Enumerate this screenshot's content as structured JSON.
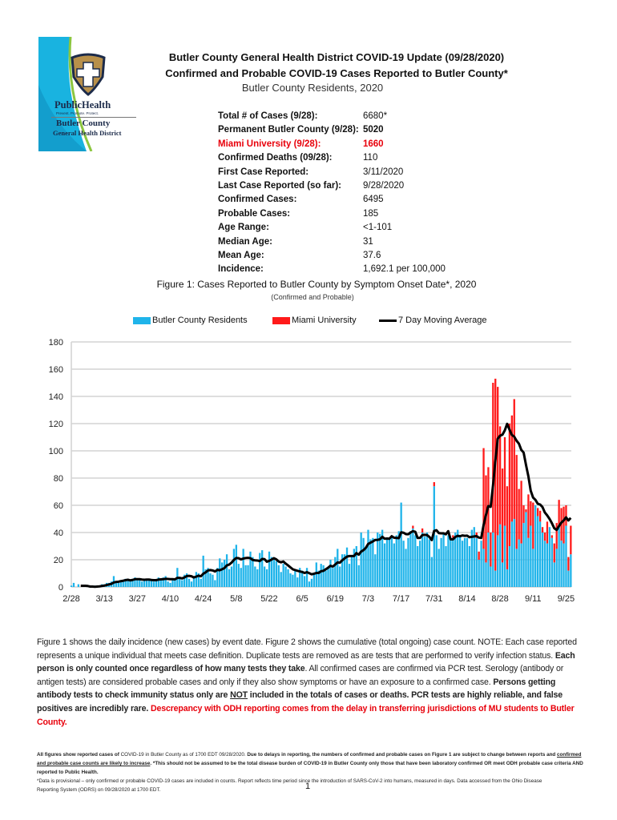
{
  "logo": {
    "text_main": "PublicHealth",
    "text_tag": "Prevent. Promote. Protect.",
    "text_county": "Butler County",
    "text_district": "General Health District"
  },
  "header": {
    "title1": "Butler County General Health District COVID-19 Update (09/28/2020)",
    "title2": "Confirmed and Probable COVID-19 Cases Reported to Butler County*",
    "title3": "Butler County Residents, 2020"
  },
  "stats": [
    {
      "label": "Total # of Cases (9/28):",
      "value": "6680*"
    },
    {
      "label": "Permanent Butler County (9/28):",
      "value": "5020"
    },
    {
      "label": "Miami University (9/28):",
      "value": "1660"
    },
    {
      "label": "Confirmed Deaths (09/28):",
      "value": "110"
    },
    {
      "label": "First Case Reported:",
      "value": "3/11/2020"
    },
    {
      "label": "Last Case Reported (so far):",
      "value": "9/28/2020"
    },
    {
      "label": "Confirmed Cases:",
      "value": "6495"
    },
    {
      "label": "Probable Cases:",
      "value": "185"
    },
    {
      "label": "Age Range:",
      "value": "<1-101"
    },
    {
      "label": "Median Age:",
      "value": "31"
    },
    {
      "label": "Mean Age:",
      "value": "37.6"
    },
    {
      "label": "Incidence:",
      "value": "1,692.1 per 100,000"
    }
  ],
  "colors": {
    "residents": "#1fb4ea",
    "miami": "#ff1a1a",
    "average": "#000000",
    "highlight_text": "#e8000b"
  },
  "chart_data": {
    "type": "bar",
    "stacked": true,
    "title": "Figure 1: Cases Reported to Butler County by Symptom Onset Date*, 2020",
    "subtitle": "(Confirmed and Probable)",
    "legend_position": "top",
    "grid": true,
    "ylim": [
      0,
      180
    ],
    "yticks": [
      0,
      20,
      40,
      60,
      80,
      100,
      120,
      140,
      160,
      180
    ],
    "x_start": "2/28",
    "xticks": [
      "2/28",
      "3/13",
      "3/27",
      "4/10",
      "4/24",
      "5/8",
      "5/22",
      "6/5",
      "6/19",
      "7/3",
      "7/17",
      "7/31",
      "8/14",
      "8/28",
      "9/11",
      "9/25"
    ],
    "series": [
      {
        "name": "Butler County Residents",
        "type": "bar",
        "values": [
          1,
          3,
          0,
          2,
          0,
          0,
          0,
          0,
          0,
          0,
          1,
          1,
          1,
          2,
          2,
          3,
          3,
          4,
          8,
          4,
          3,
          5,
          5,
          6,
          6,
          5,
          6,
          7,
          5,
          5,
          4,
          5,
          6,
          6,
          5,
          4,
          5,
          7,
          6,
          7,
          8,
          4,
          3,
          5,
          6,
          14,
          7,
          5,
          9,
          10,
          6,
          4,
          8,
          11,
          10,
          6,
          23,
          13,
          14,
          10,
          9,
          5,
          14,
          21,
          18,
          20,
          24,
          13,
          15,
          28,
          31,
          17,
          14,
          28,
          16,
          16,
          26,
          22,
          15,
          13,
          25,
          27,
          15,
          13,
          26,
          22,
          20,
          19,
          16,
          11,
          17,
          15,
          13,
          10,
          9,
          12,
          7,
          14,
          12,
          8,
          14,
          4,
          6,
          10,
          18,
          12,
          17,
          16,
          12,
          14,
          20,
          14,
          22,
          28,
          15,
          24,
          24,
          29,
          17,
          22,
          28,
          30,
          16,
          40,
          36,
          29,
          42,
          35,
          36,
          24,
          40,
          39,
          42,
          32,
          36,
          35,
          37,
          32,
          38,
          41,
          62,
          34,
          28,
          36,
          41,
          43,
          38,
          30,
          34,
          40,
          37,
          40,
          35,
          22,
          74,
          38,
          28,
          36,
          40,
          30,
          38,
          35,
          36,
          40,
          42,
          38,
          34,
          36,
          36,
          30,
          42,
          44,
          36,
          20,
          34,
          28,
          18,
          40,
          15,
          40,
          12,
          38,
          46,
          18,
          45,
          13,
          30,
          48,
          50,
          28,
          35,
          32,
          47,
          55,
          36,
          45,
          28,
          60,
          52,
          48,
          40,
          34,
          32,
          44,
          36,
          18,
          28,
          44,
          34,
          32,
          45,
          12,
          24
        ]
      },
      {
        "name": "Miami University",
        "type": "bar",
        "values": [
          0,
          0,
          0,
          0,
          0,
          0,
          0,
          0,
          0,
          0,
          0,
          0,
          0,
          0,
          0,
          0,
          0,
          0,
          0,
          0,
          0,
          0,
          0,
          0,
          0,
          0,
          0,
          0,
          0,
          0,
          0,
          0,
          0,
          0,
          0,
          0,
          0,
          0,
          0,
          0,
          0,
          0,
          0,
          0,
          0,
          0,
          0,
          0,
          0,
          0,
          0,
          0,
          0,
          0,
          0,
          0,
          0,
          0,
          0,
          0,
          0,
          0,
          0,
          0,
          0,
          0,
          0,
          0,
          0,
          0,
          0,
          0,
          0,
          0,
          0,
          0,
          0,
          0,
          0,
          0,
          0,
          0,
          0,
          0,
          0,
          0,
          0,
          0,
          0,
          0,
          0,
          0,
          0,
          0,
          0,
          0,
          0,
          0,
          0,
          0,
          0,
          0,
          0,
          0,
          0,
          0,
          0,
          0,
          0,
          0,
          0,
          0,
          0,
          0,
          0,
          0,
          0,
          0,
          0,
          0,
          0,
          0,
          0,
          0,
          0,
          0,
          0,
          0,
          0,
          0,
          0,
          0,
          0,
          0,
          0,
          0,
          0,
          0,
          0,
          0,
          0,
          0,
          0,
          0,
          0,
          2,
          0,
          0,
          0,
          3,
          0,
          0,
          0,
          0,
          3,
          0,
          0,
          0,
          0,
          0,
          0,
          0,
          2,
          0,
          0,
          0,
          0,
          0,
          0,
          0,
          0,
          0,
          4,
          6,
          0,
          74,
          64,
          48,
          25,
          110,
          141,
          109,
          72,
          69,
          65,
          61,
          90,
          78,
          88,
          69,
          37,
          46,
          13,
          2,
          32,
          18,
          34,
          0,
          6,
          8,
          4,
          6,
          16,
          0,
          2,
          14,
          19,
          20,
          24,
          27,
          15,
          10,
          21
        ]
      },
      {
        "name": "7 Day Moving Average",
        "type": "line"
      }
    ]
  },
  "body": {
    "p1": "Figure 1 shows the daily incidence (new cases) by event date. Figure 2 shows the cumulative (total ongoing) case count. NOTE: Each case reported represents a unique individual that meets case definition. Duplicate tests are removed as are tests that are performed to verify infection status. ",
    "p2_bold": "Each person is only counted once regardless of how many tests they take",
    "p3": ". All confirmed cases are confirmed via PCR test. Serology (antibody or antigen tests) are considered probable cases and only if they also show symptoms or have an exposure to a confirmed case. ",
    "p4_bold": "Persons getting antibody tests to check immunity status only are ",
    "p4_not": "NOT",
    "p4_bold2": " included in the totals of cases or deaths. PCR tests are highly reliable, and false positives are incredibly rare. ",
    "p5_red": "Descrepancy with ODH reporting comes from the delay in transferring jurisdictions of MU students to  Butler County."
  },
  "footnotes": {
    "f1": "All figures show reported cases of ",
    "f1b": "COVID-19 in Butler County as of 1700 EDT 09/28/2020. ",
    "f1c": "Due to delays in reporting, the numbers of confirmed and probable cases on Figure 1 are subject to change between reports and ",
    "f1u": "confirmed and probable case counts are likely to increase",
    "f1d": ". *This should not be assumed to be the total disease burden of COVID-19 in Butler County only those that have been laboratory confirmed OR meet ODH probable case criteria AND reported to Public Health.",
    "f2": "*Data is provisional – only confirmed or probable COVID-19 cases are included in counts. Report reflects time period since the introduction of SARS-CoV-2 into humans, measured in days. Data accessed from the Ohio Disease Reporting System (ODRS) on 09/28/2020 at 1700 EDT.",
    "page_number": "1"
  }
}
